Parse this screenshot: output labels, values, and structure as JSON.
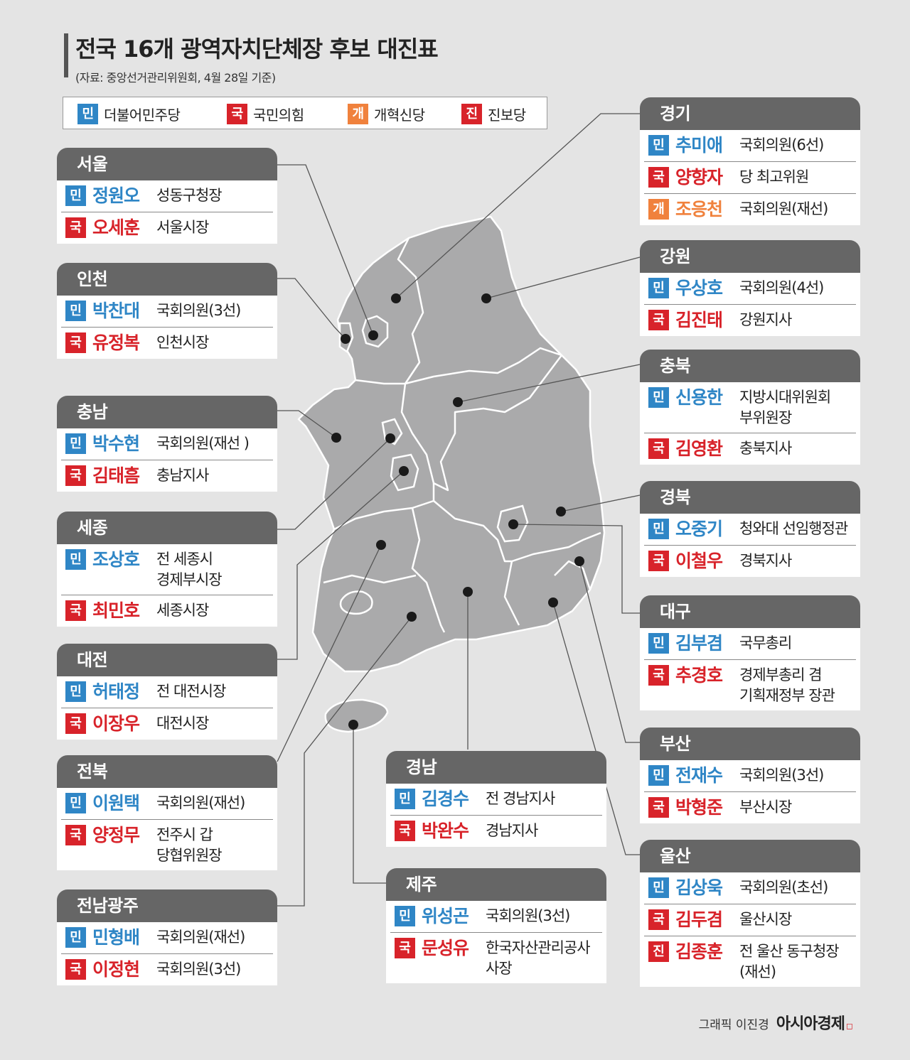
{
  "title": "전국 16개 광역자치단체장 후보 대진표",
  "source": "(자료: 중앙선거관리위원회, 4월 28일 기준)",
  "badges": {
    "min": "민",
    "guk": "국",
    "gae": "개",
    "jin": "진"
  },
  "legend": [
    {
      "badge": "민",
      "label": "더불어민주당",
      "color": "#2f86c6"
    },
    {
      "badge": "국",
      "label": "국민의힘",
      "color": "#d8232a"
    },
    {
      "badge": "개",
      "label": "개혁신당",
      "color": "#f0813c"
    },
    {
      "badge": "진",
      "label": "진보당",
      "color": "#d8232a"
    }
  ],
  "regions": {
    "seoul": {
      "name": "서울",
      "candidates": [
        {
          "party": "민",
          "name": "정원오",
          "desc": "성동구청장"
        },
        {
          "party": "국",
          "name": "오세훈",
          "desc": "서울시장"
        }
      ]
    },
    "incheon": {
      "name": "인천",
      "candidates": [
        {
          "party": "민",
          "name": "박찬대",
          "desc": "국회의원(3선)"
        },
        {
          "party": "국",
          "name": "유정복",
          "desc": "인천시장"
        }
      ]
    },
    "chungnam": {
      "name": "충남",
      "candidates": [
        {
          "party": "민",
          "name": "박수현",
          "desc": "국회의원(재선 )"
        },
        {
          "party": "국",
          "name": "김태흠",
          "desc": "충남지사"
        }
      ]
    },
    "sejong": {
      "name": "세종",
      "candidates": [
        {
          "party": "민",
          "name": "조상호",
          "desc": "전 세종시\n경제부시장"
        },
        {
          "party": "국",
          "name": "최민호",
          "desc": "세종시장"
        }
      ]
    },
    "daejeon": {
      "name": "대전",
      "candidates": [
        {
          "party": "민",
          "name": "허태정",
          "desc": "전 대전시장"
        },
        {
          "party": "국",
          "name": "이장우",
          "desc": "대전시장"
        }
      ]
    },
    "jeonbuk": {
      "name": "전북",
      "candidates": [
        {
          "party": "민",
          "name": "이원택",
          "desc": "국회의원(재선)"
        },
        {
          "party": "국",
          "name": "양정무",
          "desc": "전주시 갑\n당협위원장"
        }
      ]
    },
    "jeonnam": {
      "name": "전남광주",
      "candidates": [
        {
          "party": "민",
          "name": "민형배",
          "desc": "국회의원(재선)"
        },
        {
          "party": "국",
          "name": "이정현",
          "desc": "국회의원(3선)"
        }
      ]
    },
    "gyeongnam": {
      "name": "경남",
      "candidates": [
        {
          "party": "민",
          "name": "김경수",
          "desc": "전 경남지사"
        },
        {
          "party": "국",
          "name": "박완수",
          "desc": "경남지사"
        }
      ]
    },
    "jeju": {
      "name": "제주",
      "candidates": [
        {
          "party": "민",
          "name": "위성곤",
          "desc": "국회의원(3선)"
        },
        {
          "party": "국",
          "name": "문성유",
          "desc": "한국자산관리공사\n사장"
        }
      ]
    },
    "gyeonggi": {
      "name": "경기",
      "candidates": [
        {
          "party": "민",
          "name": "추미애",
          "desc": "국회의원(6선)"
        },
        {
          "party": "국",
          "name": "양향자",
          "desc": "당 최고위원"
        },
        {
          "party": "개",
          "name": "조응천",
          "desc": "국회의원(재선)"
        }
      ]
    },
    "gangwon": {
      "name": "강원",
      "candidates": [
        {
          "party": "민",
          "name": "우상호",
          "desc": "국회의원(4선)"
        },
        {
          "party": "국",
          "name": "김진태",
          "desc": "강원지사"
        }
      ]
    },
    "chungbuk": {
      "name": "충북",
      "candidates": [
        {
          "party": "민",
          "name": "신용한",
          "desc": "지방시대위원회\n부위원장"
        },
        {
          "party": "국",
          "name": "김영환",
          "desc": "충북지사"
        }
      ]
    },
    "gyeongbuk": {
      "name": "경북",
      "candidates": [
        {
          "party": "민",
          "name": "오중기",
          "desc": "청와대 선임행정관"
        },
        {
          "party": "국",
          "name": "이철우",
          "desc": "경북지사"
        }
      ]
    },
    "daegu": {
      "name": "대구",
      "candidates": [
        {
          "party": "민",
          "name": "김부겸",
          "desc": "국무총리"
        },
        {
          "party": "국",
          "name": "추경호",
          "desc": "경제부총리 겸\n기획재정부 장관"
        }
      ]
    },
    "busan": {
      "name": "부산",
      "candidates": [
        {
          "party": "민",
          "name": "전재수",
          "desc": "국회의원(3선)"
        },
        {
          "party": "국",
          "name": "박형준",
          "desc": "부산시장"
        }
      ]
    },
    "ulsan": {
      "name": "울산",
      "candidates": [
        {
          "party": "민",
          "name": "김상욱",
          "desc": "국회의원(초선)"
        },
        {
          "party": "국",
          "name": "김두겸",
          "desc": "울산시장"
        },
        {
          "party": "진",
          "name": "김종훈",
          "desc": "전 울산 동구청장\n(재선)"
        }
      ]
    }
  },
  "credit": {
    "text": "그래픽 이진경",
    "logo": "아시아경제"
  }
}
